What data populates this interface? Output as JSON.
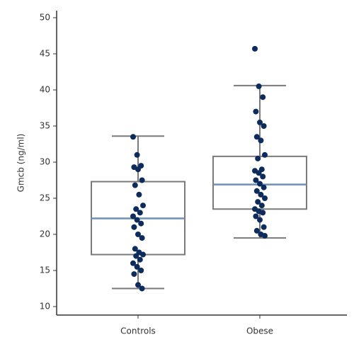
{
  "chart_data": {
    "type": "box",
    "y_label": "Gmcb (ng/ml)",
    "categories": [
      "Controls",
      "Obese"
    ],
    "ylim": [
      10,
      50
    ],
    "yticks": [
      10,
      15,
      20,
      25,
      30,
      35,
      40,
      45,
      50
    ],
    "box_color": "#7a7a7a",
    "median_color": "#6f8fb5",
    "point_color": "#0d2b5c",
    "boxes": [
      {
        "whislo": 12.5,
        "q1": 17.2,
        "med": 22.2,
        "q3": 27.3,
        "whishi": 33.6,
        "points": [
          33.5,
          31,
          29.5,
          29.3,
          29,
          27.5,
          26.8,
          25.5,
          24,
          23.5,
          23,
          22.5,
          22,
          21.5,
          21,
          20,
          19.5,
          18,
          17.5,
          17.2,
          17,
          16.5,
          16,
          15.5,
          15,
          14.5,
          13,
          12.5
        ]
      },
      {
        "whislo": 19.5,
        "q1": 23.5,
        "med": 26.9,
        "q3": 30.8,
        "whishi": 40.6,
        "points": [
          45.7,
          40.5,
          39,
          37,
          35.5,
          35,
          33.5,
          33,
          31,
          30.5,
          29,
          28.8,
          28.5,
          28,
          27.5,
          27,
          26.5,
          26,
          25.5,
          25,
          24.5,
          24,
          23.5,
          23.2,
          23,
          22.5,
          22,
          21,
          20.5,
          20,
          19.8
        ]
      }
    ]
  }
}
